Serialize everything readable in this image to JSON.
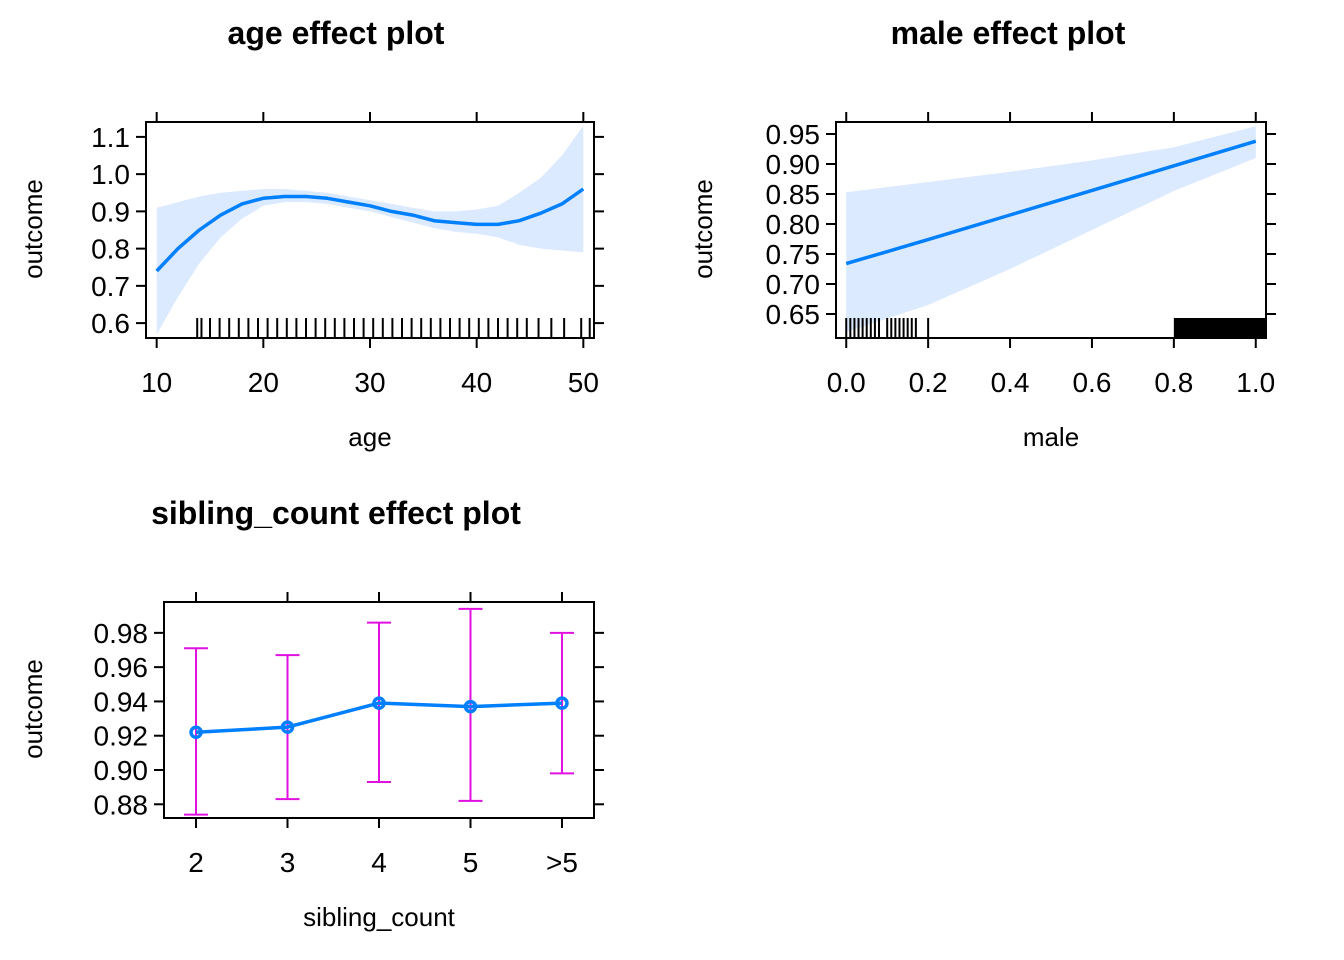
{
  "colors": {
    "line": "#0080ff",
    "band": "#dbeaff",
    "error": "#e010e0",
    "rug": "#000000",
    "frame": "#000000"
  },
  "chart_data": [
    {
      "type": "line",
      "title": "age effect plot",
      "xlabel": "age",
      "ylabel": "outcome",
      "xlim": [
        9.0,
        51.0
      ],
      "ylim": [
        0.56,
        1.14
      ],
      "x_ticks": [
        10,
        20,
        30,
        40,
        50
      ],
      "x_tick_labels": [
        "10",
        "20",
        "30",
        "40",
        "50"
      ],
      "y_ticks": [
        0.6,
        0.7,
        0.8,
        0.9,
        1.0,
        1.1
      ],
      "y_tick_labels": [
        "0.6",
        "0.7",
        "0.8",
        "0.9",
        "1.0",
        "1.1"
      ],
      "x": [
        10,
        12,
        14,
        16,
        18,
        20,
        22,
        24,
        26,
        28,
        30,
        32,
        34,
        36,
        38,
        40,
        42,
        44,
        46,
        48,
        50
      ],
      "y": [
        0.74,
        0.8,
        0.85,
        0.89,
        0.92,
        0.935,
        0.94,
        0.94,
        0.935,
        0.925,
        0.915,
        0.9,
        0.89,
        0.875,
        0.87,
        0.865,
        0.865,
        0.875,
        0.895,
        0.92,
        0.96
      ],
      "lower": [
        0.57,
        0.67,
        0.76,
        0.83,
        0.88,
        0.915,
        0.925,
        0.925,
        0.92,
        0.91,
        0.9,
        0.885,
        0.87,
        0.855,
        0.845,
        0.84,
        0.83,
        0.81,
        0.8,
        0.795,
        0.79
      ],
      "upper": [
        0.91,
        0.925,
        0.94,
        0.95,
        0.955,
        0.96,
        0.96,
        0.955,
        0.95,
        0.94,
        0.93,
        0.92,
        0.91,
        0.9,
        0.9,
        0.905,
        0.915,
        0.95,
        0.99,
        1.05,
        1.13
      ],
      "rug": [
        13.8,
        14.2,
        15.0,
        15.9,
        16.8,
        17.7,
        18.6,
        19.5,
        20.4,
        21.3,
        22.2,
        23.1,
        24.0,
        24.9,
        25.8,
        26.7,
        27.6,
        28.5,
        29.4,
        30.3,
        31.2,
        32.1,
        33.0,
        33.9,
        34.8,
        35.7,
        36.6,
        37.5,
        38.4,
        39.3,
        40.2,
        41.1,
        42.0,
        42.9,
        43.8,
        44.7,
        45.8,
        47.0,
        48.2,
        49.8,
        50.6
      ]
    },
    {
      "type": "line",
      "title": "male effect plot",
      "xlabel": "male",
      "ylabel": "outcome",
      "xlim": [
        -0.025,
        1.025
      ],
      "ylim": [
        0.61,
        0.97
      ],
      "x_ticks": [
        0.0,
        0.2,
        0.4,
        0.6,
        0.8,
        1.0
      ],
      "x_tick_labels": [
        "0.0",
        "0.2",
        "0.4",
        "0.6",
        "0.8",
        "1.0"
      ],
      "y_ticks": [
        0.65,
        0.7,
        0.75,
        0.8,
        0.85,
        0.9,
        0.95
      ],
      "y_tick_labels": [
        "0.65",
        "0.70",
        "0.75",
        "0.80",
        "0.85",
        "0.90",
        "0.95"
      ],
      "x": [
        0.0,
        0.2,
        0.4,
        0.6,
        0.8,
        1.0
      ],
      "y": [
        0.734,
        0.774,
        0.815,
        0.856,
        0.897,
        0.938
      ],
      "lower": [
        0.62,
        0.665,
        0.725,
        0.79,
        0.855,
        0.91
      ],
      "upper": [
        0.853,
        0.87,
        0.887,
        0.906,
        0.928,
        0.963
      ],
      "rug": [
        0.0,
        0.01,
        0.02,
        0.03,
        0.04,
        0.05,
        0.06,
        0.07,
        0.08,
        0.1,
        0.11,
        0.12,
        0.13,
        0.14,
        0.15,
        0.16,
        0.17,
        0.2
      ],
      "rug_block": [
        0.8,
        1.025
      ]
    },
    {
      "type": "line",
      "title": "sibling_count effect plot",
      "xlabel": "sibling_count",
      "ylabel": "outcome",
      "categories": [
        "2",
        "3",
        "4",
        "5",
        ">5"
      ],
      "ylim": [
        0.872,
        0.998
      ],
      "y_ticks": [
        0.88,
        0.9,
        0.92,
        0.94,
        0.96,
        0.98
      ],
      "y_tick_labels": [
        "0.88",
        "0.90",
        "0.92",
        "0.94",
        "0.96",
        "0.98"
      ],
      "values": [
        0.922,
        0.925,
        0.939,
        0.937,
        0.939
      ],
      "lower": [
        0.874,
        0.883,
        0.893,
        0.882,
        0.898
      ],
      "upper": [
        0.971,
        0.967,
        0.986,
        0.994,
        0.98
      ]
    }
  ]
}
